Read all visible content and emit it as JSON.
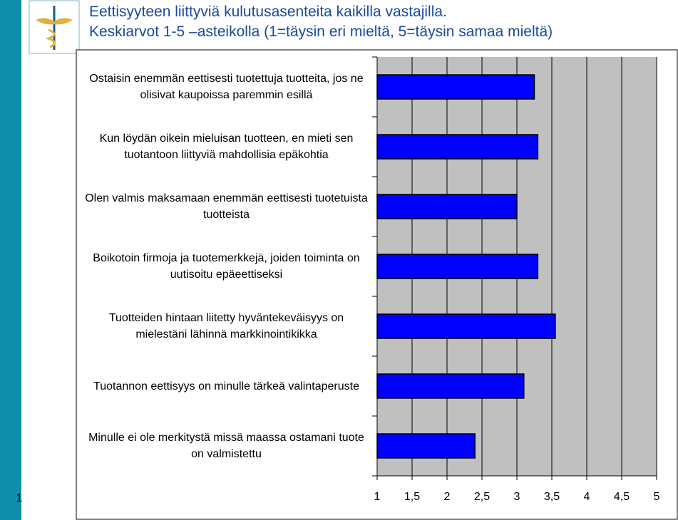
{
  "slide_number": "1",
  "chart_data": {
    "type": "bar",
    "orientation": "horizontal",
    "title": "Eettisyyteen liittyviä kulutusasenteita kaikilla vastajilla.",
    "subtitle": "Keskiarvot 1-5 –asteikolla (1=täysin eri mieltä, 5=täysin samaa mieltä)",
    "categories": [
      "Ostaisin enemmän eettisesti tuotettuja tuotteita, jos ne olisivat kaupoissa paremmin esillä",
      "Kun löydän oikein mieluisan tuotteen, en mieti sen tuotantoon liittyviä mahdollisia epäkohtia",
      "Olen valmis maksamaan enemmän eettisesti tuotetuista tuotteista",
      "Boikotoin firmoja ja tuotemerkkejä, joiden toiminta on uutisoitu epäeettiseksi",
      "Tuotteiden hintaan liitetty hyväntekeväisyys on mielestäni lähinnä markkinointikikka",
      "Tuotannon eettisyys on minulle tärkeä valintaperuste",
      "Minulle ei ole merkitystä missä maassa ostamani tuote on valmistettu"
    ],
    "values": [
      3.25,
      3.3,
      3.0,
      3.3,
      3.55,
      3.1,
      2.4
    ],
    "color": "#0000ff",
    "xlim": [
      1,
      5
    ],
    "xticks": [
      1,
      {
        "value": 1.5,
        "label": "1,5"
      },
      2,
      {
        "value": 2.5,
        "label": "2,5"
      },
      3,
      {
        "value": 3.5,
        "label": "3,5"
      },
      4,
      {
        "value": 4.5,
        "label": "4,5"
      },
      5
    ],
    "grid": true
  }
}
